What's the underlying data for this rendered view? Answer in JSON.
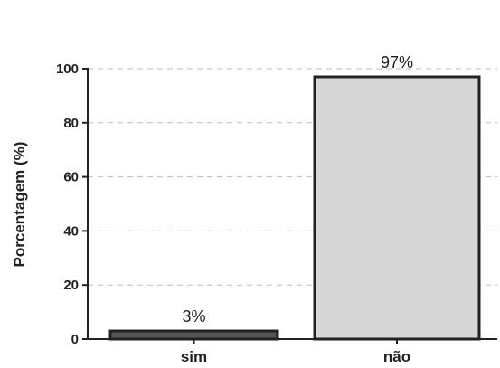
{
  "chart_data": {
    "type": "bar",
    "categories": [
      "sim",
      "não"
    ],
    "values": [
      3,
      97
    ],
    "data_labels": [
      "3%",
      "97%"
    ],
    "ylabel": "Porcentagem (%)",
    "xlabel": "",
    "ylim": [
      0,
      100
    ],
    "yticks": [
      0,
      20,
      40,
      60,
      80,
      100
    ],
    "grid": true,
    "bar_colors": [
      "#555555",
      "#d7d7d7"
    ],
    "bar_edge_color": "#222222"
  }
}
